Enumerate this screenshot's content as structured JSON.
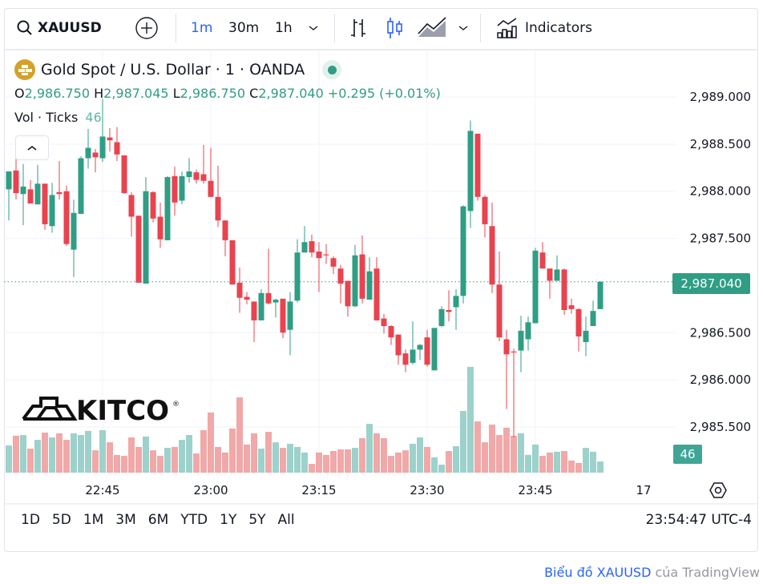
{
  "toolbar": {
    "symbol": "XAUUSD",
    "intervals": [
      "1m",
      "30m",
      "1h"
    ],
    "active_interval": "1m",
    "indicators_label": "Indicators",
    "accent": "#2962ff"
  },
  "legend": {
    "title": "Gold Spot / U.S. Dollar · 1 · OANDA",
    "o_label": "O",
    "o": "2,986.750",
    "h_label": "H",
    "h": "2,987.045",
    "l_label": "L",
    "l": "2,986.750",
    "c_label": "C",
    "c": "2,987.040",
    "change": "+0.295 (+0.01%)",
    "vol_label": "Vol · Ticks",
    "vol_value": "46"
  },
  "watermark": "KITCO",
  "last_price_label": "2,987.040",
  "last_volume_label": "46",
  "range_buttons": [
    "1D",
    "5D",
    "1M",
    "3M",
    "6M",
    "YTD",
    "1Y",
    "5Y",
    "All"
  ],
  "clock": "23:54:47 UTC-4",
  "attribution": {
    "link": "Biểu đồ XAUUSD",
    "rest": " của TradingView"
  },
  "chart_data": {
    "type": "candlestick",
    "title": "Gold Spot / U.S. Dollar · 1 · OANDA",
    "interval": "1m",
    "start_time": "22:32",
    "end_time": "23:54",
    "colors": {
      "up": "#2f9e84",
      "down": "#e8434f",
      "vol_up": "#9dd1cb",
      "vol_down": "#f0a8a8"
    },
    "ylim": [
      2985.25,
      2989.5
    ],
    "y_ticks": [
      2989.0,
      2988.5,
      2988.0,
      2987.5,
      2986.5,
      2986.0,
      2985.5
    ],
    "y_tick_labels": [
      "2,989.000",
      "2,988.500",
      "2,988.000",
      "2,987.500",
      "2,986.500",
      "2,986.000",
      "2,985.500"
    ],
    "x_ticks": [
      {
        "label": "22:45",
        "index": 13
      },
      {
        "label": "23:00",
        "index": 28
      },
      {
        "label": "23:15",
        "index": 43
      },
      {
        "label": "23:30",
        "index": 58
      },
      {
        "label": "23:45",
        "index": 73
      },
      {
        "label": "17",
        "index": 88
      }
    ],
    "last_price": 2987.04,
    "candles_columns": [
      "open",
      "high",
      "low",
      "close",
      "volume_ticks"
    ],
    "candles": [
      [
        2988.02,
        2988.21,
        2987.69,
        2988.21,
        112
      ],
      [
        2988.22,
        2988.4,
        2987.91,
        2987.98,
        152
      ],
      [
        2987.97,
        2988.29,
        2987.64,
        2988.05,
        155
      ],
      [
        2988.02,
        2988.12,
        2987.87,
        2987.87,
        99
      ],
      [
        2987.86,
        2988.28,
        2987.86,
        2988.08,
        135
      ],
      [
        2988.08,
        2988.08,
        2987.59,
        2987.65,
        165
      ],
      [
        2987.63,
        2988.09,
        2987.56,
        2987.96,
        145
      ],
      [
        2987.99,
        2988.32,
        2987.91,
        2987.97,
        162
      ],
      [
        2988.0,
        2988.06,
        2987.42,
        2987.44,
        135
      ],
      [
        2987.38,
        2987.91,
        2987.09,
        2987.77,
        162
      ],
      [
        2987.76,
        2988.37,
        2987.76,
        2988.35,
        155
      ],
      [
        2988.35,
        2988.66,
        2988.24,
        2988.46,
        172
      ],
      [
        2988.41,
        2988.45,
        2988.2,
        2988.36,
        92
      ],
      [
        2988.35,
        2988.98,
        2988.31,
        2988.58,
        175
      ],
      [
        2988.57,
        2988.67,
        2988.42,
        2988.54,
        125
      ],
      [
        2988.52,
        2988.68,
        2988.32,
        2988.39,
        73
      ],
      [
        2988.38,
        2988.38,
        2987.97,
        2987.98,
        69
      ],
      [
        2987.96,
        2987.99,
        2987.52,
        2987.73,
        145
      ],
      [
        2987.74,
        2987.74,
        2987.03,
        2987.03,
        106
      ],
      [
        2987.02,
        2988.15,
        2987.02,
        2988.0,
        149
      ],
      [
        2987.99,
        2988.0,
        2987.67,
        2987.71,
        92
      ],
      [
        2987.73,
        2987.88,
        2987.4,
        2987.49,
        69
      ],
      [
        2987.48,
        2988.16,
        2987.48,
        2988.15,
        102
      ],
      [
        2988.16,
        2988.26,
        2987.74,
        2987.88,
        106
      ],
      [
        2987.9,
        2988.21,
        2987.86,
        2988.16,
        135
      ],
      [
        2988.15,
        2988.35,
        2988.09,
        2988.21,
        155
      ],
      [
        2988.2,
        2988.23,
        2988.08,
        2988.12,
        79
      ],
      [
        2988.18,
        2988.49,
        2988.08,
        2988.11,
        175
      ],
      [
        2988.11,
        2988.46,
        2987.94,
        2987.94,
        248
      ],
      [
        2987.94,
        2988.27,
        2987.62,
        2987.69,
        106
      ],
      [
        2987.69,
        2987.69,
        2987.31,
        2987.48,
        83
      ],
      [
        2987.48,
        2987.48,
        2987.01,
        2987.01,
        182
      ],
      [
        2987.03,
        2987.19,
        2986.71,
        2986.87,
        310
      ],
      [
        2986.88,
        2986.93,
        2986.8,
        2986.85,
        116
      ],
      [
        2986.83,
        2986.83,
        2986.4,
        2986.63,
        162
      ],
      [
        2986.63,
        2986.96,
        2986.63,
        2986.92,
        99
      ],
      [
        2986.92,
        2987.39,
        2986.8,
        2986.81,
        168
      ],
      [
        2986.82,
        2986.86,
        2986.66,
        2986.85,
        125
      ],
      [
        2986.86,
        2986.86,
        2986.44,
        2986.5,
        102
      ],
      [
        2986.53,
        2986.93,
        2986.26,
        2986.83,
        119
      ],
      [
        2986.84,
        2987.49,
        2986.82,
        2987.35,
        106
      ],
      [
        2987.35,
        2987.63,
        2987.35,
        2987.46,
        83
      ],
      [
        2987.47,
        2987.54,
        2987.3,
        2987.35,
        36
      ],
      [
        2987.36,
        2987.46,
        2986.93,
        2987.29,
        83
      ],
      [
        2987.33,
        2987.44,
        2987.23,
        2987.32,
        73
      ],
      [
        2987.29,
        2987.31,
        2987.12,
        2987.2,
        89
      ],
      [
        2987.18,
        2987.22,
        2986.81,
        2987.02,
        96
      ],
      [
        2987.05,
        2987.05,
        2986.67,
        2986.78,
        96
      ],
      [
        2986.78,
        2987.43,
        2986.77,
        2987.32,
        102
      ],
      [
        2987.33,
        2987.53,
        2986.81,
        2986.86,
        142
      ],
      [
        2986.85,
        2987.3,
        2986.85,
        2987.15,
        201
      ],
      [
        2987.18,
        2987.3,
        2986.63,
        2986.63,
        162
      ],
      [
        2986.65,
        2986.7,
        2986.49,
        2986.57,
        142
      ],
      [
        2986.57,
        2986.58,
        2986.37,
        2986.45,
        69
      ],
      [
        2986.48,
        2986.48,
        2986.16,
        2986.26,
        83
      ],
      [
        2986.28,
        2986.32,
        2986.08,
        2986.16,
        92
      ],
      [
        2986.18,
        2986.62,
        2986.16,
        2986.32,
        119
      ],
      [
        2986.32,
        2986.38,
        2986.21,
        2986.37,
        145
      ],
      [
        2986.45,
        2986.53,
        2986.14,
        2986.16,
        106
      ],
      [
        2986.1,
        2986.55,
        2986.1,
        2986.55,
        63
      ],
      [
        2986.57,
        2986.78,
        2986.56,
        2986.75,
        33
      ],
      [
        2986.74,
        2986.95,
        2986.62,
        2986.72,
        89
      ],
      [
        2986.77,
        2986.96,
        2986.53,
        2986.89,
        109
      ],
      [
        2986.89,
        2987.85,
        2986.81,
        2987.84,
        254
      ],
      [
        2987.79,
        2988.75,
        2987.61,
        2988.64,
        436
      ],
      [
        2988.61,
        2988.61,
        2987.9,
        2987.94,
        211
      ],
      [
        2987.94,
        2987.96,
        2987.51,
        2987.65,
        125
      ],
      [
        2987.63,
        2987.88,
        2986.92,
        2987.01,
        198
      ],
      [
        2987.01,
        2987.36,
        2986.41,
        2986.45,
        155
      ],
      [
        2986.43,
        2986.53,
        2985.69,
        2986.27,
        185
      ],
      [
        2986.3,
        2986.33,
        2985.39,
        2986.29,
        152
      ],
      [
        2986.31,
        2986.68,
        2986.08,
        2986.52,
        162
      ],
      [
        2986.43,
        2986.67,
        2986.31,
        2986.61,
        73
      ],
      [
        2986.6,
        2987.4,
        2986.6,
        2987.37,
        116
      ],
      [
        2987.35,
        2987.46,
        2987.18,
        2987.18,
        69
      ],
      [
        2987.18,
        2987.18,
        2986.86,
        2987.05,
        83
      ],
      [
        2987.05,
        2987.32,
        2987.05,
        2987.17,
        86
      ],
      [
        2987.17,
        2987.18,
        2986.69,
        2986.74,
        89
      ],
      [
        2986.79,
        2986.86,
        2986.7,
        2986.75,
        50
      ],
      [
        2986.75,
        2986.76,
        2986.3,
        2986.46,
        40
      ],
      [
        2986.4,
        2986.67,
        2986.25,
        2986.52,
        102
      ],
      [
        2986.57,
        2986.84,
        2986.57,
        2986.73,
        86
      ],
      [
        2986.75,
        2987.045,
        2986.75,
        2987.04,
        46
      ]
    ]
  }
}
